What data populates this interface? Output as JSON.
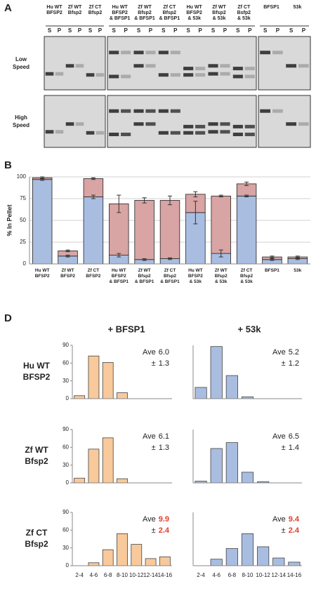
{
  "panel_labels": [
    "A",
    "B",
    "D"
  ],
  "gel": {
    "lanes": [
      [
        "Hu WT",
        "BFSP2"
      ],
      [
        "Zf WT",
        "Bfsp2"
      ],
      [
        "Zf CT",
        "Bfsp2"
      ],
      [
        "Hu WT",
        "BFSP2",
        "& BFSP1"
      ],
      [
        "Zf WT",
        "Bfsp2",
        "& BFSP1"
      ],
      [
        "Zf CT",
        "Bfsp2",
        "& BFSP1"
      ],
      [
        "Hu WT",
        "BFSP2",
        "& 53k"
      ],
      [
        "Zf WT",
        "Bfsp2",
        "& 53k"
      ],
      [
        "Zf CT",
        "Bsfp2",
        "& 53k"
      ],
      [
        "BFSP1"
      ],
      [
        "53k"
      ]
    ],
    "sp": [
      "S",
      "P"
    ],
    "rows": [
      [
        "Low",
        "Speed"
      ],
      [
        "High",
        "Speed"
      ]
    ]
  },
  "column_titles": [
    "+ BFSP1",
    "+ 53k"
  ],
  "row_labels": [
    [
      "Hu WT",
      "BFSP2"
    ],
    [
      "Zf WT",
      "Bfsp2"
    ],
    [
      "Zf CT",
      "Bfsp2"
    ]
  ],
  "chart_data": [
    {
      "type": "bar",
      "stacked": true,
      "ylabel": "% In Pellet",
      "categories": [
        [
          "Hu WT",
          "BFSP2"
        ],
        [
          "Zf WT",
          "BFSP2"
        ],
        [
          "Zf CT",
          "BFSP2"
        ],
        [
          "Hu WT",
          "BFSP2",
          "& BFSP1"
        ],
        [
          "Zf WT",
          "Bfsp2",
          "& BFSP1"
        ],
        [
          "Zf CT",
          "Bfsp2",
          "& BFSP1"
        ],
        [
          "Hu WT",
          "BFSP2",
          "& 53k"
        ],
        [
          "Zf WT",
          "Bfsp2",
          "& 53k"
        ],
        [
          "Zf CT",
          "Bfsp2",
          "& 53k"
        ],
        [
          "BFSP1"
        ],
        [
          "53k"
        ]
      ],
      "series": [
        {
          "color": "#a9bde0",
          "values": [
            97,
            9,
            77,
            10,
            5,
            6,
            59,
            12,
            78,
            5,
            6
          ],
          "errors": [
            1,
            1,
            2,
            2,
            1,
            1,
            13,
            4,
            1,
            1,
            1
          ]
        },
        {
          "color": "#d8a4a4",
          "values": [
            2,
            6,
            21,
            59,
            68,
            67,
            21,
            66,
            14,
            3,
            2
          ],
          "errors": [
            1,
            1,
            1,
            10,
            3,
            5,
            3,
            1,
            2,
            1,
            1
          ]
        }
      ],
      "ylim": [
        0,
        100
      ],
      "yticks": [
        0,
        25,
        50,
        75,
        100
      ],
      "grid": true
    },
    {
      "type": "bar",
      "color": "#f7c99b",
      "values": [
        5,
        72,
        61,
        10,
        0,
        0,
        0
      ],
      "ylim": [
        0,
        90
      ],
      "yticks": [
        0,
        30,
        60,
        90
      ],
      "annotation": {
        "ave_label": "Ave",
        "ave": "6.0",
        "sd_label": "±",
        "sd": "1.3",
        "highlight": false
      }
    },
    {
      "type": "bar",
      "color": "#a9bde0",
      "values": [
        19,
        88,
        39,
        3,
        0,
        0,
        0
      ],
      "ylim": [
        0,
        90
      ],
      "annotation": {
        "ave_label": "Ave",
        "ave": "5.2",
        "sd_label": "±",
        "sd": "1.2",
        "highlight": false
      }
    },
    {
      "type": "bar",
      "color": "#f7c99b",
      "values": [
        8,
        57,
        76,
        7,
        0,
        0,
        0
      ],
      "ylim": [
        0,
        90
      ],
      "yticks": [
        0,
        30,
        60,
        90
      ],
      "annotation": {
        "ave_label": "Ave",
        "ave": "6.1",
        "sd_label": "±",
        "sd": "1.3",
        "highlight": false
      }
    },
    {
      "type": "bar",
      "color": "#a9bde0",
      "values": [
        3,
        58,
        68,
        18,
        2,
        0,
        0
      ],
      "ylim": [
        0,
        90
      ],
      "annotation": {
        "ave_label": "Ave",
        "ave": "6.5",
        "sd_label": "±",
        "sd": "1.4",
        "highlight": false
      }
    },
    {
      "type": "bar",
      "color": "#f7c99b",
      "categories": [
        "2-4",
        "4-6",
        "6-8",
        "8-10",
        "10-12",
        "12-14",
        "14-16"
      ],
      "values": [
        0,
        5,
        27,
        54,
        36,
        12,
        15
      ],
      "ylim": [
        0,
        90
      ],
      "yticks": [
        0,
        30,
        60,
        90
      ],
      "annotation": {
        "ave_label": "Ave",
        "ave": "9.9",
        "sd_label": "±",
        "sd": "2.4",
        "highlight": true
      }
    },
    {
      "type": "bar",
      "color": "#a9bde0",
      "categories": [
        "2-4",
        "4-6",
        "6-8",
        "8-10",
        "10-12",
        "12-14",
        "14-16"
      ],
      "values": [
        0,
        11,
        29,
        54,
        32,
        13,
        6
      ],
      "ylim": [
        0,
        90
      ],
      "annotation": {
        "ave_label": "Ave",
        "ave": "9.4",
        "sd_label": "±",
        "sd": "2.4",
        "highlight": true
      }
    }
  ]
}
